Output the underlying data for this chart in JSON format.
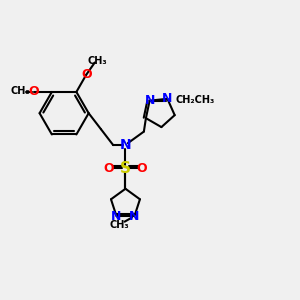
{
  "bg_color": "#f0f0f0",
  "bond_color": "#000000",
  "nitrogen_color": "#0000ff",
  "oxygen_color": "#ff0000",
  "sulfur_color": "#cccc00",
  "carbon_color": "#000000",
  "line_width": 1.5,
  "dbo": 0.08,
  "font_size": 8,
  "figsize": [
    3.0,
    3.0
  ],
  "dpi": 100,
  "xlim": [
    0,
    12
  ],
  "ylim": [
    0,
    12
  ]
}
